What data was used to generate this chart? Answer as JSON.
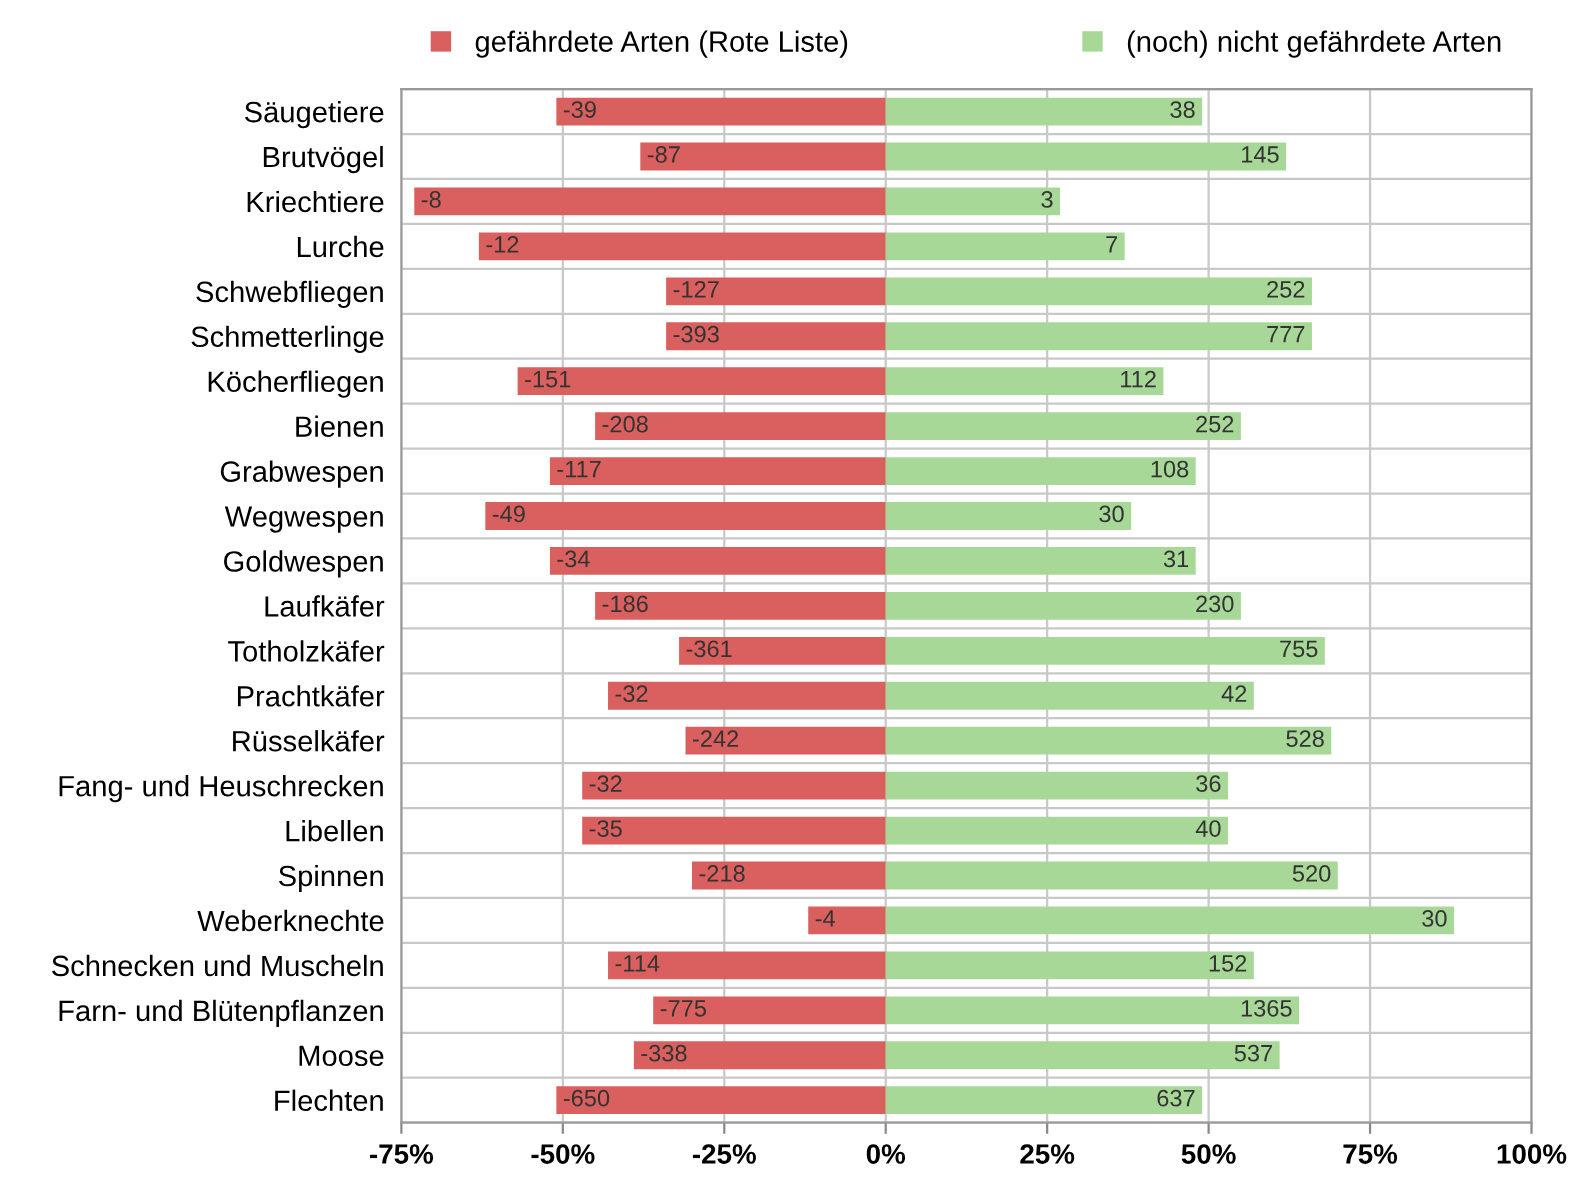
{
  "chart_data": {
    "type": "bar",
    "orientation": "horizontal",
    "stacked": true,
    "categories": [
      "Säugetiere",
      "Brutvögel",
      "Kriechtiere",
      "Lurche",
      "Schwebfliegen",
      "Schmetterlinge",
      "Köcherfliegen",
      "Bienen",
      "Grabwespen",
      "Wegwespen",
      "Goldwespen",
      "Laufkäfer",
      "Totholzkäfer",
      "Prachtkäfer",
      "Rüsselkäfer",
      "Fang- und Heuschrecken",
      "Libellen",
      "Spinnen",
      "Weberknechte",
      "Schnecken und Muscheln",
      "Farn- und Blütenpflanzen",
      "Moose",
      "Flechten"
    ],
    "series": [
      {
        "name": "gefährdete Arten (Rote Liste)",
        "color": "#d9605e",
        "values": [
          -51,
          -38,
          -73,
          -63,
          -34,
          -34,
          -57,
          -45,
          -52,
          -62,
          -52,
          -45,
          -32,
          -43,
          -31,
          -47,
          -47,
          -30,
          -12,
          -43,
          -36,
          -39,
          -51
        ]
      },
      {
        "name": "(noch) nicht gefährdete Arten",
        "color": "#a8d898",
        "values": [
          49,
          62,
          27,
          37,
          66,
          66,
          43,
          55,
          48,
          38,
          48,
          55,
          68,
          57,
          69,
          53,
          53,
          70,
          88,
          57,
          64,
          61,
          49
        ]
      }
    ],
    "annotations": [
      {
        "text": "-39",
        "x": -51,
        "y": "Säugetiere"
      },
      {
        "text": "-87",
        "x": -38,
        "y": "Brutvögel"
      },
      {
        "text": "-8",
        "x": -73,
        "y": "Kriechtiere"
      },
      {
        "text": "-12",
        "x": -63,
        "y": "Lurche"
      },
      {
        "text": "-127",
        "x": -34,
        "y": "Schwebfliegen"
      },
      {
        "text": "-393",
        "x": -34,
        "y": "Schmetterlinge"
      },
      {
        "text": "-151",
        "x": -57,
        "y": "Köcherfliegen"
      },
      {
        "text": "-208",
        "x": -45,
        "y": "Bienen"
      },
      {
        "text": "-117",
        "x": -52,
        "y": "Grabwespen"
      },
      {
        "text": "-49",
        "x": -62,
        "y": "Wegwespen"
      },
      {
        "text": "-34",
        "x": -52,
        "y": "Goldwespen"
      },
      {
        "text": "-186",
        "x": -45,
        "y": "Laufkäfer"
      },
      {
        "text": "-361",
        "x": -32,
        "y": "Totholzkäfer"
      },
      {
        "text": "-32",
        "x": -43,
        "y": "Prachtkäfer"
      },
      {
        "text": "-242",
        "x": -31,
        "y": "Rüsselkäfer"
      },
      {
        "text": "-32",
        "x": -47,
        "y": "Fang- und Heuschrecken"
      },
      {
        "text": "-35",
        "x": -47,
        "y": "Libellen"
      },
      {
        "text": "-218",
        "x": -30,
        "y": "Spinnen"
      },
      {
        "text": "-4",
        "x": -12,
        "y": "Weberknechte"
      },
      {
        "text": "-114",
        "x": -43,
        "y": "Schnecken und Muscheln"
      },
      {
        "text": "-775",
        "x": -36,
        "y": "Farn- und Blütenpflanzen"
      },
      {
        "text": "-338",
        "x": -39,
        "y": "Moose"
      },
      {
        "text": "-650",
        "x": -51,
        "y": "Flechten"
      },
      {
        "text": "38",
        "x": 49,
        "y": "Säugetiere"
      },
      {
        "text": "145",
        "x": 62,
        "y": "Brutvögel"
      },
      {
        "text": "3",
        "x": 27,
        "y": "Kriechtiere"
      },
      {
        "text": "7",
        "x": 37,
        "y": "Lurche"
      },
      {
        "text": "252",
        "x": 66,
        "y": "Schwebfliegen"
      },
      {
        "text": "777",
        "x": 66,
        "y": "Schmetterlinge"
      },
      {
        "text": "112",
        "x": 43,
        "y": "Köcherfliegen"
      },
      {
        "text": "252",
        "x": 55,
        "y": "Bienen"
      },
      {
        "text": "108",
        "x": 48,
        "y": "Grabwespen"
      },
      {
        "text": "30",
        "x": 38,
        "y": "Wegwespen"
      },
      {
        "text": "31",
        "x": 48,
        "y": "Goldwespen"
      },
      {
        "text": "230",
        "x": 55,
        "y": "Laufkäfer"
      },
      {
        "text": "755",
        "x": 68,
        "y": "Totholzkäfer"
      },
      {
        "text": "42",
        "x": 57,
        "y": "Prachtkäfer"
      },
      {
        "text": "528",
        "x": 69,
        "y": "Rüsselkäfer"
      },
      {
        "text": "36",
        "x": 53,
        "y": "Fang- und Heuschrecken"
      },
      {
        "text": "40",
        "x": 53,
        "y": "Libellen"
      },
      {
        "text": "520",
        "x": 70,
        "y": "Spinnen"
      },
      {
        "text": "30",
        "x": 88,
        "y": "Weberknechte"
      },
      {
        "text": "152",
        "x": 57,
        "y": "Schnecken und Muscheln"
      },
      {
        "text": "1365",
        "x": 64,
        "y": "Farn- und Blütenpflanzen"
      },
      {
        "text": "537",
        "x": 61,
        "y": "Moose"
      },
      {
        "text": "637",
        "x": 49,
        "y": "Flechten"
      }
    ],
    "xlim": [
      -75,
      100
    ],
    "xticks": [
      {
        "value": -75,
        "label": "-75%"
      },
      {
        "value": -50,
        "label": "-50%"
      },
      {
        "value": -25,
        "label": "-25%"
      },
      {
        "value": 0,
        "label": "0%"
      },
      {
        "value": 25,
        "label": "25%"
      },
      {
        "value": 50,
        "label": "50%"
      },
      {
        "value": 75,
        "label": "75%"
      },
      {
        "value": 100,
        "label": "100%"
      }
    ],
    "grid": true,
    "legend": "top"
  }
}
